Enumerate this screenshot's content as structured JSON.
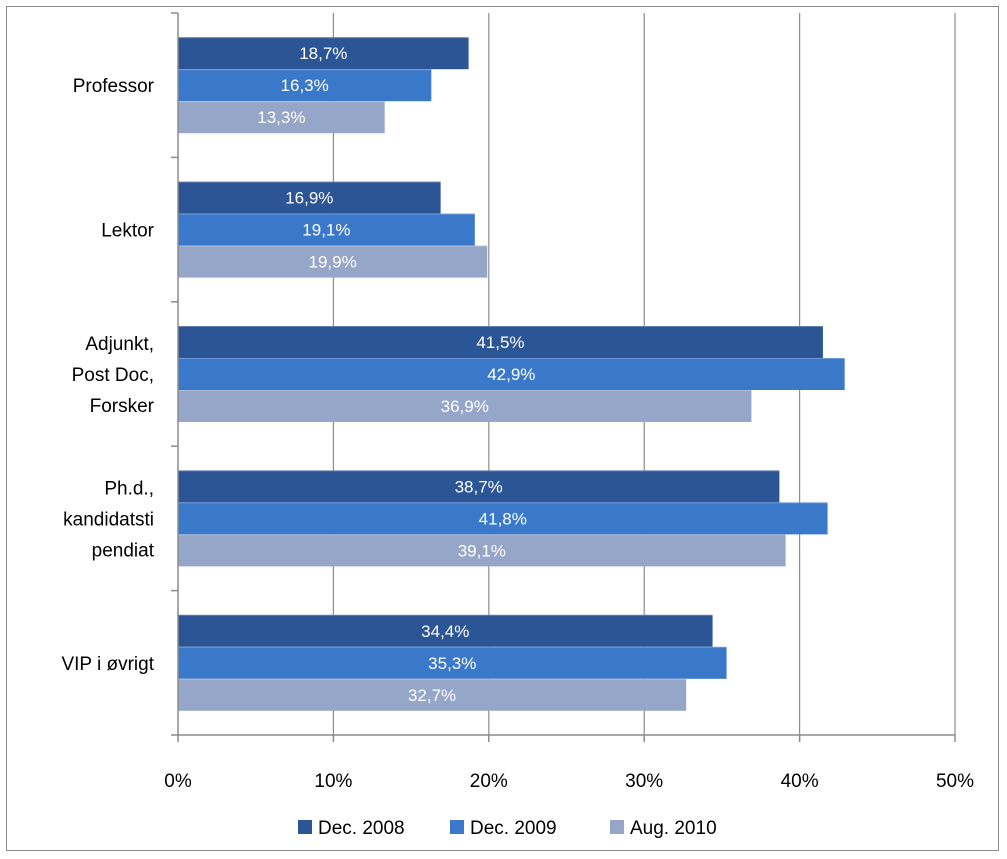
{
  "chart_data": {
    "type": "bar",
    "orientation": "horizontal",
    "categories": [
      "Professor",
      "Lektor",
      "Adjunkt, Post Doc, Forsker",
      "Ph.d., kandidatsti pendiat",
      "VIP i øvrigt"
    ],
    "category_label_lines": [
      [
        "Professor"
      ],
      [
        "Lektor"
      ],
      [
        "Adjunkt,",
        "Post Doc,",
        "Forsker"
      ],
      [
        "Ph.d.,",
        "kandidatsti",
        "pendiat"
      ],
      [
        "VIP i øvrigt"
      ]
    ],
    "series": [
      {
        "name": "Dec. 2008",
        "color": "#2c5596",
        "values": [
          18.7,
          16.9,
          41.5,
          38.7,
          34.4
        ],
        "labels": [
          "18,7%",
          "16,9%",
          "41,5%",
          "38,7%",
          "34,4%"
        ]
      },
      {
        "name": "Dec. 2009",
        "color": "#3a78c9",
        "values": [
          16.3,
          19.1,
          42.9,
          41.8,
          35.3
        ],
        "labels": [
          "16,3%",
          "19,1%",
          "42,9%",
          "41,8%",
          "35,3%"
        ]
      },
      {
        "name": "Aug. 2010",
        "color": "#96a6c9",
        "values": [
          13.3,
          19.9,
          36.9,
          39.1,
          32.7
        ],
        "labels": [
          "13,3%",
          "19,9%",
          "36,9%",
          "39,1%",
          "32,7%"
        ]
      }
    ],
    "xlim": [
      0,
      50
    ],
    "xticks": [
      0,
      10,
      20,
      30,
      40,
      50
    ],
    "xtick_labels": [
      "0%",
      "10%",
      "20%",
      "30%",
      "40%",
      "50%"
    ],
    "grid": true,
    "legend": "bottom"
  }
}
